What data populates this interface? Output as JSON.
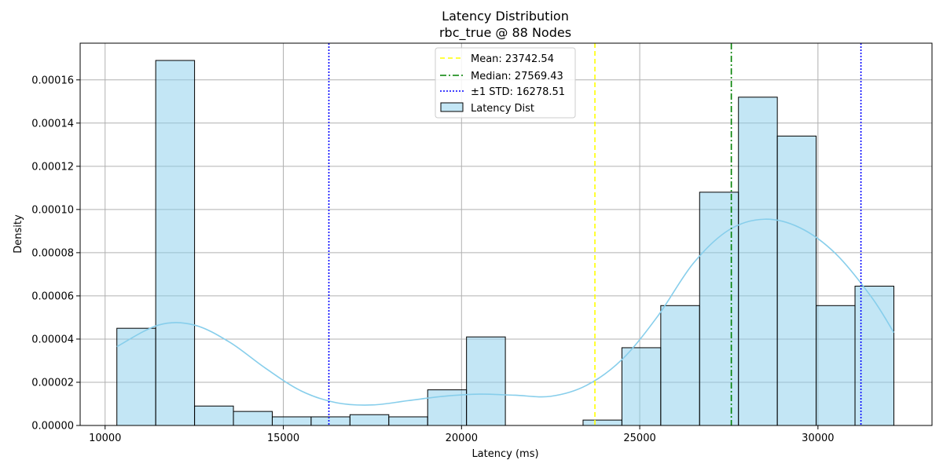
{
  "chart_data": {
    "type": "bar",
    "title": "Latency Distribution",
    "subtitle": "rbc_true @ 88 Nodes",
    "xlabel": "Latency (ms)",
    "ylabel": "Density",
    "xlim": [
      9300,
      33200
    ],
    "ylim": [
      0,
      0.000177
    ],
    "x_ticks": [
      10000,
      15000,
      20000,
      25000,
      30000
    ],
    "y_ticks": [
      0,
      2e-05,
      4e-05,
      6e-05,
      8e-05,
      0.0001,
      0.00012,
      0.00014,
      0.00016
    ],
    "x_tick_labels": [
      "10000",
      "15000",
      "20000",
      "25000",
      "30000"
    ],
    "y_tick_labels": [
      "0.00000",
      "0.00002",
      "0.00004",
      "0.00006",
      "0.00008",
      "0.00010",
      "0.00012",
      "0.00014",
      "0.00016"
    ],
    "grid": true,
    "bin_edges": [
      10330,
      11420,
      12510,
      13600,
      14690,
      15780,
      16870,
      17960,
      19050,
      20140,
      21230,
      22320,
      23410,
      24500,
      25590,
      26680,
      27770,
      28860,
      29950,
      31040,
      32130
    ],
    "values": [
      4.5e-05,
      0.000169,
      9e-06,
      6.5e-06,
      4e-06,
      4e-06,
      5e-06,
      4e-06,
      1.65e-05,
      4.1e-05,
      0,
      0,
      2.5e-06,
      3.6e-05,
      5.55e-05,
      0.000108,
      0.000152,
      0.000134,
      5.55e-05,
      6.45e-05
    ],
    "kde": {
      "x": [
        10330,
        11500,
        12500,
        13500,
        14500,
        15500,
        16500,
        17500,
        18500,
        19500,
        20500,
        21500,
        22500,
        23500,
        24500,
        25500,
        26500,
        27500,
        28500,
        29500,
        30500,
        31500,
        32130
      ],
      "y": [
        3.65e-05,
        4.65e-05,
        4.65e-05,
        3.85e-05,
        2.65e-05,
        1.6e-05,
        1.05e-05,
        9.5e-06,
        1.15e-05,
        1.35e-05,
        1.45e-05,
        1.4e-05,
        1.35e-05,
        1.85e-05,
        3.05e-05,
        5.05e-05,
        7.5e-05,
        9.05e-05,
        9.55e-05,
        9.15e-05,
        7.95e-05,
        5.95e-05,
        4.3e-05
      ]
    },
    "lines": [
      {
        "name": "Mean: 23742.54",
        "x": 23742.54,
        "color": "#ffff00",
        "style": "dashed"
      },
      {
        "name": "Median: 27569.43",
        "x": 27569.43,
        "color": "#008000",
        "style": "dashdot"
      },
      {
        "name": "±1 STD: 16278.51",
        "x": 16278.51,
        "color": "#0000ff",
        "style": "dotted"
      },
      {
        "x": 31206.57,
        "color": "#0000ff",
        "style": "dotted"
      }
    ],
    "legend": {
      "placement": "top-center",
      "entries": [
        "Mean: 23742.54",
        "Median: 27569.43",
        "±1 STD: 16278.51",
        "Latency Dist"
      ]
    },
    "colors": {
      "bar_fill": "#87ceeb",
      "bar_edge": "#000000",
      "kde_line": "#87ceeb",
      "grid": "#b0b0b0"
    }
  }
}
